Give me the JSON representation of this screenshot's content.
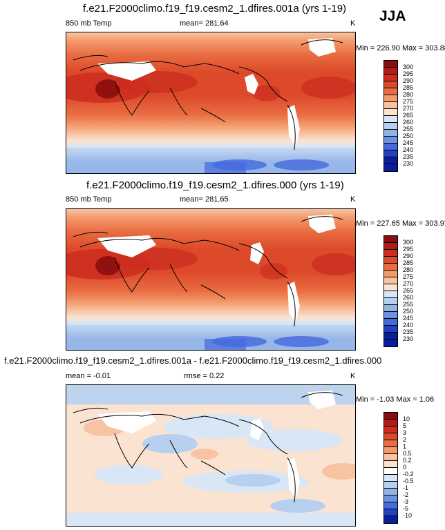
{
  "season": "JJA",
  "panels": [
    {
      "title": "f.e21.F2000climo.f19_f19.cesm2_1.dfires.001a (yrs 1-19)",
      "left_label": "850 mb Temp",
      "center_label": "mean= 281.64",
      "units": "K",
      "minmax": "Min = 226.90 Max = 303.88",
      "colorbar_labels": [
        "300",
        "295",
        "290",
        "285",
        "280",
        "275",
        "270",
        "265",
        "260",
        "255",
        "250",
        "245",
        "240",
        "235",
        "230"
      ],
      "colorbar_colors": [
        "#8a0e0e",
        "#b01d16",
        "#cc2d1f",
        "#dd4a2a",
        "#e96c42",
        "#f39a6c",
        "#f8c3a2",
        "#fbe3d2",
        "#d8e6f5",
        "#b7d0ef",
        "#8fb4e6",
        "#6a92e0",
        "#4669dc",
        "#2441c4",
        "#0a1e9c"
      ],
      "scale": "absolute"
    },
    {
      "title": "f.e21.F2000climo.f19_f19.cesm2_1.dfires.000 (yrs 1-19)",
      "left_label": "850 mb Temp",
      "center_label": "mean= 281.65",
      "units": "K",
      "minmax": "Min = 227.65 Max = 303.97",
      "colorbar_labels": [
        "300",
        "295",
        "290",
        "285",
        "280",
        "275",
        "270",
        "265",
        "260",
        "255",
        "250",
        "245",
        "240",
        "235",
        "230"
      ],
      "colorbar_colors": [
        "#8a0e0e",
        "#b01d16",
        "#cc2d1f",
        "#dd4a2a",
        "#e96c42",
        "#f39a6c",
        "#f8c3a2",
        "#fbe3d2",
        "#d8e6f5",
        "#b7d0ef",
        "#8fb4e6",
        "#6a92e0",
        "#4669dc",
        "#2441c4",
        "#0a1e9c"
      ],
      "scale": "absolute"
    },
    {
      "title": "f.e21.F2000climo.f19_f19.cesm2_1.dfires.001a - f.e21.F2000climo.f19_f19.cesm2_1.dfires.000",
      "left_label": "mean =  -0.01",
      "center_label": "rmse =   0.22",
      "units": "K",
      "minmax": "Min =  -1.03 Max =   1.06",
      "colorbar_labels": [
        "10",
        "5",
        "3",
        "2",
        "1",
        "0.5",
        "0.2",
        "0",
        "-0.2",
        "-0.5",
        "-1",
        "-2",
        "-3",
        "-5",
        "-10"
      ],
      "colorbar_colors": [
        "#8a0e0e",
        "#b01d16",
        "#cc2d1f",
        "#dd4a2a",
        "#e96c42",
        "#f39a6c",
        "#f8c3a2",
        "#fbe3d2",
        "#ffffff",
        "#d8e6f5",
        "#b7d0ef",
        "#8fb4e6",
        "#6a92e0",
        "#4669dc",
        "#2441c4",
        "#0a1e9c"
      ],
      "scale": "difference"
    }
  ]
}
